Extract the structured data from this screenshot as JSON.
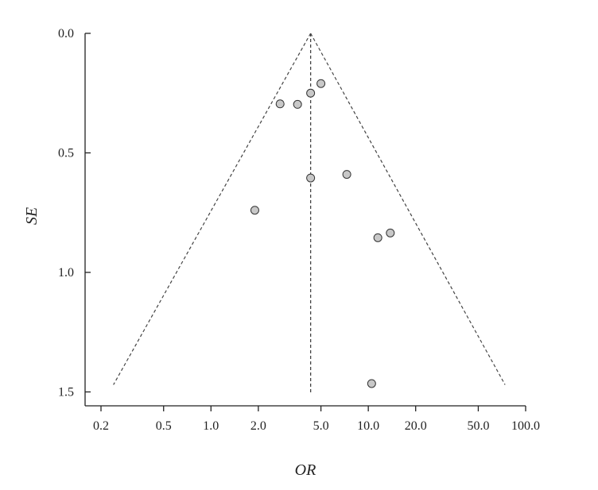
{
  "chart_data": {
    "type": "scatter",
    "title": "",
    "xlabel": "OR",
    "ylabel": "SE",
    "x_scale": "log",
    "y_inverted": true,
    "xlim": [
      0.2,
      100.0
    ],
    "ylim": [
      0.0,
      1.55
    ],
    "x_ticks": [
      0.2,
      0.5,
      1.0,
      2.0,
      5.0,
      10.0,
      20.0,
      50.0,
      100.0
    ],
    "x_tick_labels": [
      "0.2",
      "0.5",
      "1.0",
      "2.0",
      "5.0",
      "10.0",
      "20.0",
      "50.0",
      "100.0"
    ],
    "y_ticks": [
      0.0,
      0.5,
      1.0,
      1.5
    ],
    "y_tick_labels": [
      "0.0",
      "0.5",
      "1.0",
      "1.5"
    ],
    "pooled_or": 4.3,
    "funnel_limits": {
      "se_max": 1.47,
      "lower_or": 0.24,
      "upper_or": 74
    },
    "points": [
      {
        "x": 5.0,
        "y": 0.21
      },
      {
        "x": 4.3,
        "y": 0.25
      },
      {
        "x": 2.75,
        "y": 0.295
      },
      {
        "x": 3.55,
        "y": 0.297
      },
      {
        "x": 7.3,
        "y": 0.59
      },
      {
        "x": 4.3,
        "y": 0.605
      },
      {
        "x": 1.9,
        "y": 0.74
      },
      {
        "x": 13.8,
        "y": 0.835
      },
      {
        "x": 11.5,
        "y": 0.855
      },
      {
        "x": 10.5,
        "y": 1.465
      }
    ]
  }
}
